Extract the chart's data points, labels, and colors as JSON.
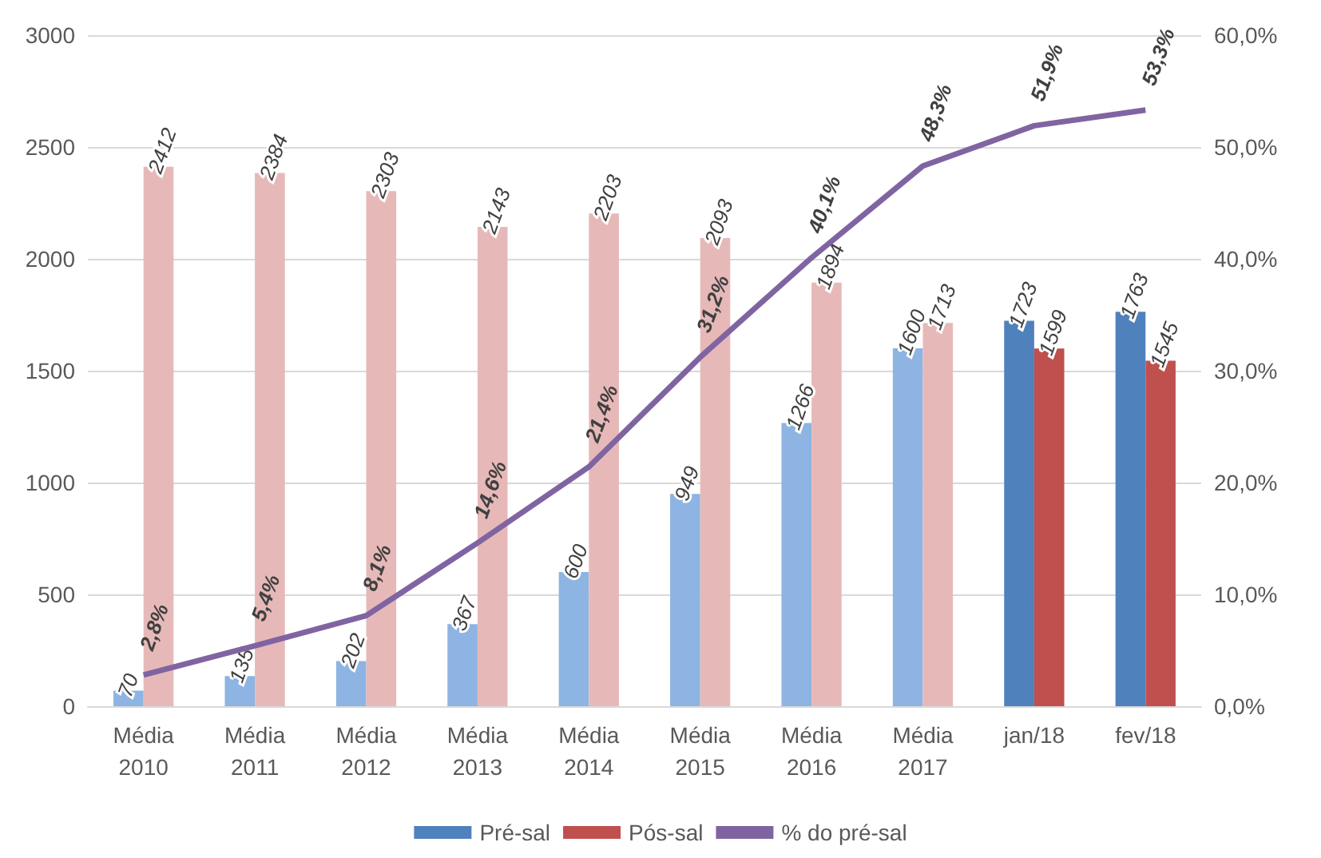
{
  "chart_data": {
    "type": "bar",
    "categories": [
      "Média 2010",
      "Média 2011",
      "Média 2012",
      "Média 2013",
      "Média 2014",
      "Média 2015",
      "Média 2016",
      "Média 2017",
      "jan/18",
      "fev/18"
    ],
    "series": [
      {
        "name": "Pré-sal",
        "color": "#4f81bd",
        "colors": [
          "#8db4e2",
          "#8db4e2",
          "#8db4e2",
          "#8db4e2",
          "#8db4e2",
          "#8db4e2",
          "#8db4e2",
          "#8db4e2",
          "#4f81bd",
          "#4f81bd"
        ],
        "values": [
          70,
          135,
          202,
          367,
          600,
          949,
          1266,
          1600,
          1723,
          1763
        ]
      },
      {
        "name": "Pós-sal",
        "color": "#c0504d",
        "colors": [
          "#e6b9b8",
          "#e6b9b8",
          "#e6b9b8",
          "#e6b9b8",
          "#e6b9b8",
          "#e6b9b8",
          "#e6b9b8",
          "#e6b9b8",
          "#c0504d",
          "#c0504d"
        ],
        "values": [
          2412,
          2384,
          2303,
          2143,
          2203,
          2093,
          1894,
          1713,
          1599,
          1545
        ]
      },
      {
        "name": "% do pré-sal",
        "type": "line",
        "axis": "y2",
        "color": "#8064a2",
        "marker": "none",
        "values": [
          2.8,
          5.4,
          8.1,
          14.6,
          21.4,
          31.2,
          40.1,
          48.3,
          51.9,
          53.3
        ],
        "value_labels": [
          "2,8%",
          "5,4%",
          "8,1%",
          "14,6%",
          "21,4%",
          "31,2%",
          "40,1%",
          "48,3%",
          "51,9%",
          "53,3%"
        ]
      }
    ],
    "ylim": [
      0,
      3000
    ],
    "yticks": [
      0,
      500,
      1000,
      1500,
      2000,
      2500,
      3000
    ],
    "y2lim": [
      0,
      60
    ],
    "y2ticks": [
      {
        "value": 0,
        "label": "0,0%"
      },
      {
        "value": 10,
        "label": "10,0%"
      },
      {
        "value": 20,
        "label": "20,0%"
      },
      {
        "value": 30,
        "label": "30,0%"
      },
      {
        "value": 40,
        "label": "40,0%"
      },
      {
        "value": 50,
        "label": "50,0%"
      },
      {
        "value": 60,
        "label": "60,0%"
      }
    ],
    "grid": "y",
    "legend": "bottom",
    "data_labels": true
  }
}
